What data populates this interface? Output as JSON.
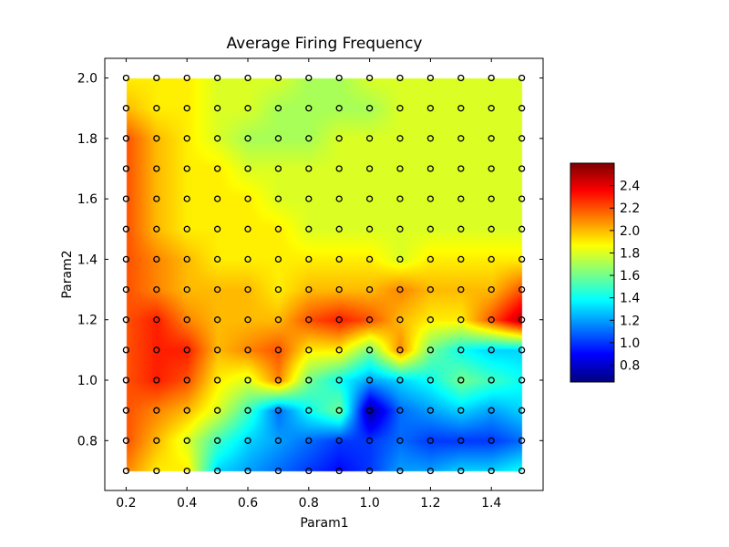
{
  "chart_data": {
    "type": "heatmap",
    "title": "Average Firing Frequency",
    "xlabel": "Param1",
    "ylabel": "Param2",
    "xlim": [
      0.13,
      1.57
    ],
    "ylim": [
      0.635,
      2.065
    ],
    "x": [
      0.2,
      0.3,
      0.4,
      0.5,
      0.6,
      0.7,
      0.8,
      0.9,
      1.0,
      1.1,
      1.2,
      1.3,
      1.4,
      1.5
    ],
    "y": [
      0.7,
      0.8,
      0.9,
      1.0,
      1.1,
      1.2,
      1.3,
      1.4,
      1.5,
      1.6,
      1.7,
      1.8,
      1.9,
      2.0
    ],
    "xticks": [
      "0.2",
      "0.4",
      "0.6",
      "0.8",
      "1.0",
      "1.2",
      "1.4"
    ],
    "xtick_values": [
      0.2,
      0.4,
      0.6,
      0.8,
      1.0,
      1.2,
      1.4
    ],
    "yticks": [
      "0.8",
      "1.0",
      "1.2",
      "1.4",
      "1.6",
      "1.8",
      "2.0"
    ],
    "ytick_values": [
      0.8,
      1.0,
      1.2,
      1.4,
      1.6,
      1.8,
      2.0
    ],
    "z": [
      [
        2.1,
        1.9,
        1.9,
        1.3,
        1.2,
        1.1,
        1.0,
        0.9,
        1.0,
        1.2,
        1.2,
        1.3,
        1.3,
        1.4
      ],
      [
        2.2,
        2.0,
        1.8,
        1.5,
        1.3,
        1.2,
        1.1,
        1.0,
        1.0,
        1.1,
        1.0,
        1.0,
        1.0,
        1.1
      ],
      [
        2.2,
        2.1,
        2.0,
        1.8,
        1.5,
        1.1,
        1.4,
        1.6,
        0.7,
        1.1,
        1.2,
        1.3,
        1.2,
        1.3
      ],
      [
        2.2,
        2.3,
        2.2,
        1.9,
        1.8,
        2.1,
        1.6,
        1.4,
        1.2,
        1.3,
        1.4,
        1.6,
        1.5,
        1.4
      ],
      [
        2.2,
        2.3,
        2.3,
        2.0,
        2.1,
        2.2,
        1.9,
        1.9,
        1.6,
        2.1,
        1.6,
        1.4,
        1.3,
        1.3
      ],
      [
        2.2,
        2.3,
        2.1,
        2.0,
        2.0,
        2.0,
        2.2,
        2.3,
        2.2,
        2.0,
        1.9,
        1.9,
        2.2,
        2.5
      ],
      [
        2.2,
        2.1,
        2.0,
        2.0,
        2.0,
        1.9,
        2.0,
        2.0,
        2.0,
        2.1,
        2.0,
        2.0,
        2.0,
        2.2
      ],
      [
        2.2,
        2.1,
        2.0,
        1.9,
        1.9,
        1.9,
        1.9,
        1.9,
        1.9,
        1.8,
        1.9,
        1.9,
        1.9,
        1.9
      ],
      [
        2.2,
        2.0,
        1.9,
        1.9,
        1.9,
        1.9,
        1.8,
        1.8,
        1.8,
        1.8,
        1.8,
        1.8,
        1.8,
        1.8
      ],
      [
        2.2,
        2.0,
        1.9,
        1.9,
        1.9,
        1.8,
        1.8,
        1.8,
        1.8,
        1.8,
        1.8,
        1.8,
        1.8,
        1.8
      ],
      [
        2.2,
        2.0,
        1.9,
        1.9,
        1.8,
        1.8,
        1.8,
        1.8,
        1.8,
        1.8,
        1.8,
        1.8,
        1.8,
        1.8
      ],
      [
        2.2,
        2.0,
        1.9,
        1.8,
        1.7,
        1.7,
        1.7,
        1.8,
        1.8,
        1.8,
        1.8,
        1.8,
        1.8,
        1.8
      ],
      [
        2.0,
        1.9,
        1.9,
        1.8,
        1.8,
        1.7,
        1.7,
        1.7,
        1.7,
        1.8,
        1.8,
        1.8,
        1.8,
        1.8
      ],
      [
        1.9,
        1.9,
        1.9,
        1.8,
        1.8,
        1.8,
        1.7,
        1.7,
        1.8,
        1.8,
        1.8,
        1.8,
        1.8,
        1.8
      ]
    ],
    "colormap": "jet",
    "vmin": 0.65,
    "vmax": 2.6,
    "colorbar_ticks": [
      "2.4",
      "2.2",
      "2.0",
      "1.8",
      "1.6",
      "1.4",
      "1.2",
      "1.0",
      "0.8"
    ],
    "colorbar_tick_values": [
      2.4,
      2.2,
      2.0,
      1.8,
      1.6,
      1.4,
      1.2,
      1.0,
      0.8
    ],
    "grid": false,
    "markers": "open circles at each grid sample point"
  }
}
